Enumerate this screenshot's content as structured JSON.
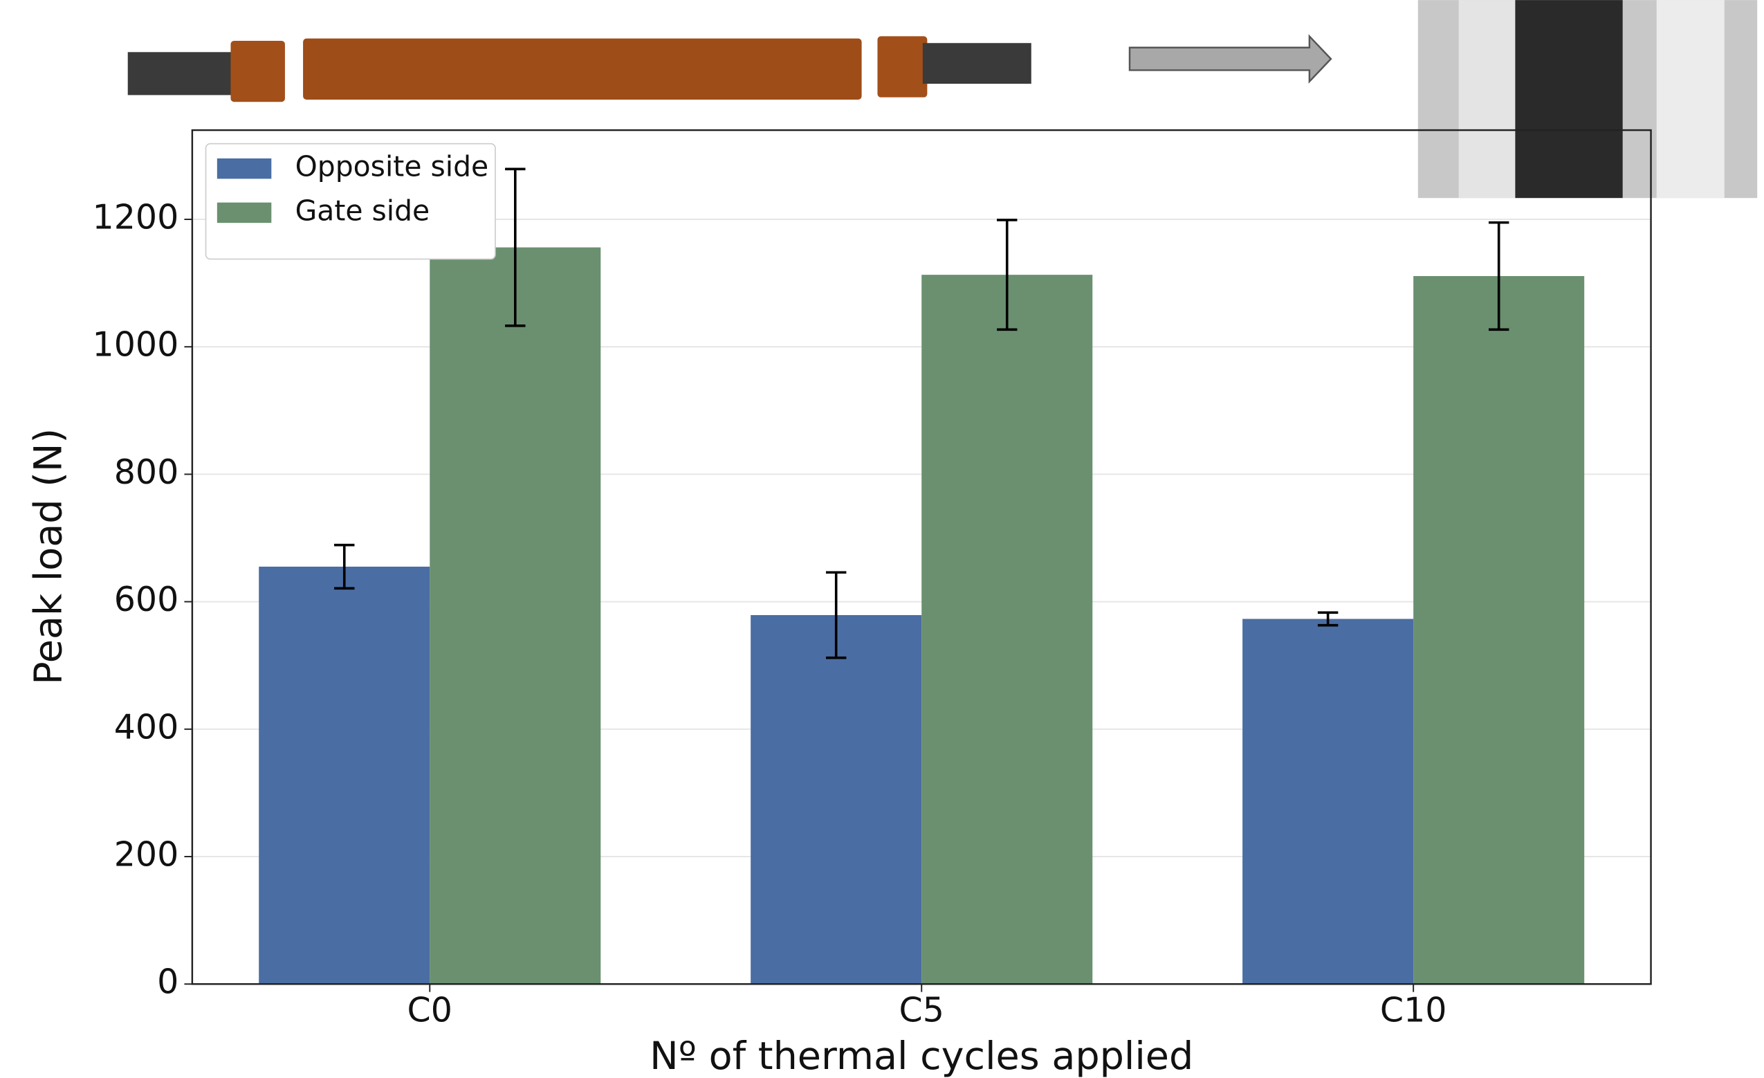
{
  "chart_data": {
    "type": "bar",
    "x_label": "Nº of thermal cycles applied",
    "y_label": "Peak load (N)",
    "categories": [
      "C0",
      "C5",
      "C10"
    ],
    "series": [
      {
        "name": "Opposite side",
        "color": "#4a6da3",
        "values": [
          655,
          579,
          573
        ],
        "errors": [
          34,
          67,
          10
        ]
      },
      {
        "name": "Gate side",
        "color": "#6a9070",
        "values": [
          1156,
          1113,
          1111
        ],
        "errors": [
          123,
          86,
          84
        ]
      }
    ],
    "ylim": [
      0,
      1340
    ],
    "yticks": [
      0,
      200,
      400,
      600,
      800,
      1000,
      1200
    ],
    "grid": true,
    "legend": "upper left"
  }
}
